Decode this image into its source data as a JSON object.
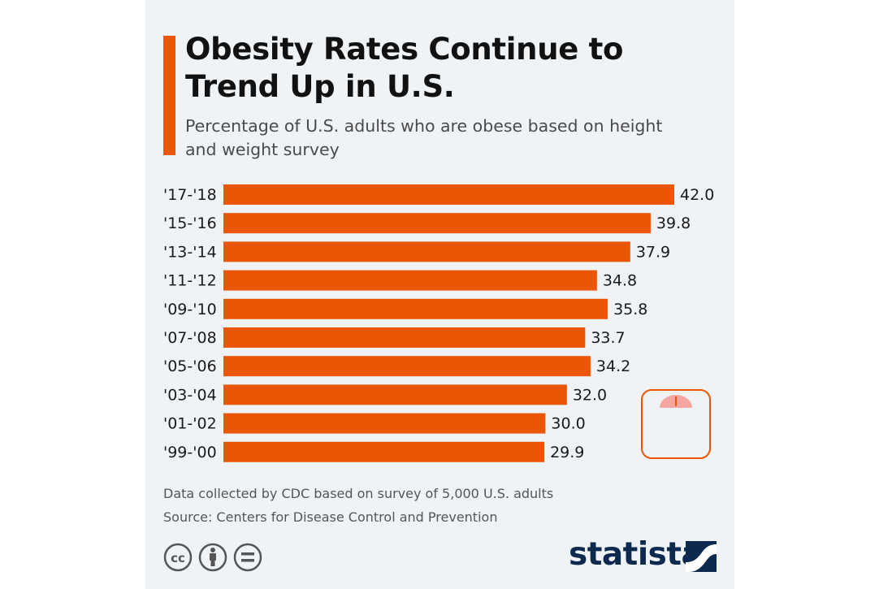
{
  "header": {
    "title": "Obesity Rates Continue to Trend Up in U.S.",
    "subtitle": "Percentage of U.S. adults who are obese based on height and weight survey"
  },
  "chart_data": {
    "type": "bar",
    "orientation": "horizontal",
    "title": "Obesity Rates Continue to Trend Up in U.S.",
    "subtitle": "Percentage of U.S. adults who are obese based on height and weight survey",
    "categories": [
      "'17-'18",
      "'15-'16",
      "'13-'14",
      "'11-'12",
      "'09-'10",
      "'07-'08",
      "'05-'06",
      "'03-'04",
      "'01-'02",
      "'99-'00"
    ],
    "values": [
      42.0,
      39.8,
      37.9,
      34.8,
      35.8,
      33.7,
      34.2,
      32.0,
      30.0,
      29.9
    ],
    "value_labels": [
      "42.0",
      "39.8",
      "37.9",
      "34.8",
      "35.8",
      "33.7",
      "34.2",
      "32.0",
      "30.0",
      "29.9"
    ],
    "xlabel": "",
    "ylabel": "",
    "xlim": [
      0,
      42.0
    ],
    "grid": false,
    "legend": "none",
    "bar_color": "#ea5506"
  },
  "footer": {
    "note": "Data collected by CDC based on survey of 5,000 U.S. adults",
    "source": "Source: Centers for Disease Control and Prevention",
    "brand": "statista",
    "license_icons": [
      "cc-icon",
      "attribution-icon",
      "no-derivatives-icon"
    ]
  },
  "colors": {
    "accent": "#ea5506",
    "background": "#f0f3f6",
    "brand": "#0d2a4e"
  }
}
